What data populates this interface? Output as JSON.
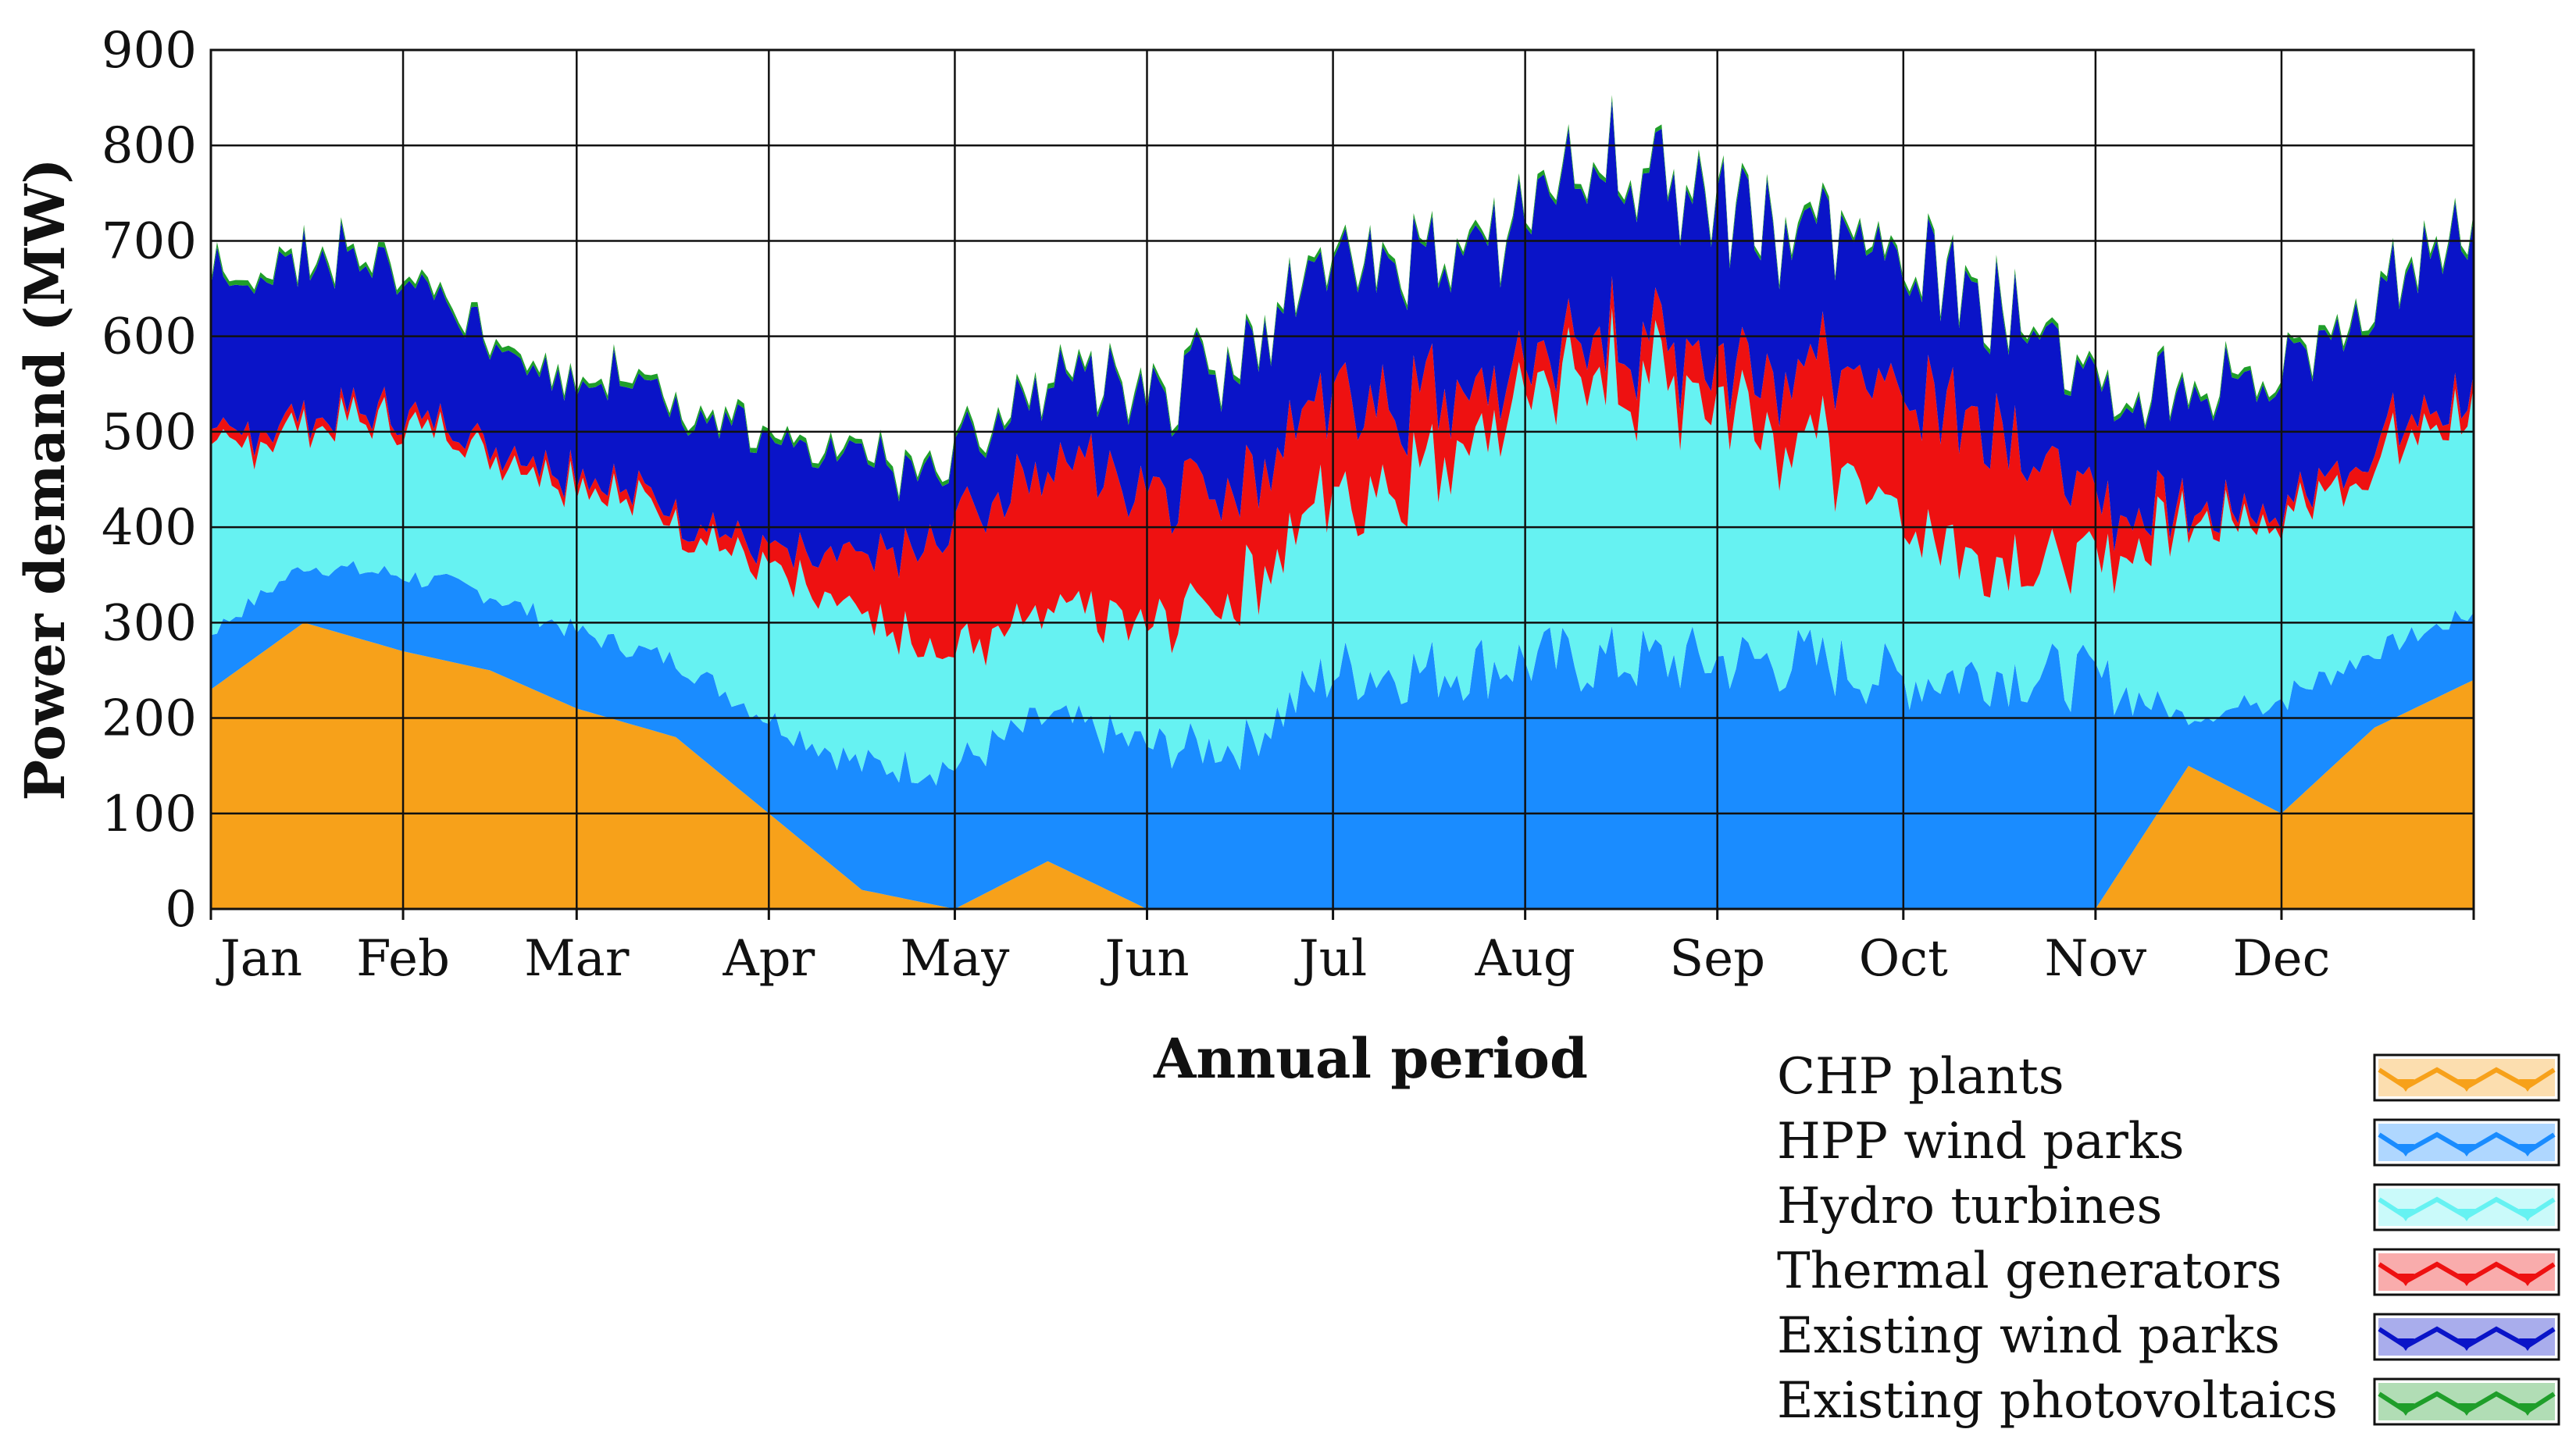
{
  "chart_data": {
    "type": "area",
    "title": "",
    "xlabel": "Annual period",
    "ylabel": "Power demand (MW)",
    "ylim": [
      0,
      900
    ],
    "y_ticks": [
      0,
      100,
      200,
      300,
      400,
      500,
      600,
      700,
      800,
      900
    ],
    "x_tick_labels": [
      "Jan",
      "Feb",
      "Mar",
      "Apr",
      "May",
      "Jun",
      "Jul",
      "Aug",
      "Sep",
      "Oct",
      "Nov",
      "Dec"
    ],
    "grid": true,
    "legend_position": "bottom-right",
    "x_days": [
      0,
      15,
      31,
      45,
      59,
      75,
      90,
      105,
      120,
      135,
      151,
      166,
      181,
      196,
      212,
      227,
      243,
      258,
      273,
      288,
      304,
      319,
      334,
      349,
      365
    ],
    "series": [
      {
        "name": "CHP plants",
        "color": "#F7A11A",
        "values": [
          230,
          300,
          270,
          250,
          210,
          180,
          100,
          20,
          0,
          50,
          0,
          0,
          0,
          0,
          0,
          0,
          0,
          0,
          0,
          0,
          0,
          150,
          100,
          190,
          240
        ]
      },
      {
        "name": "HPP wind parks",
        "color": "#1A8CFF",
        "values": [
          60,
          60,
          80,
          80,
          80,
          80,
          100,
          130,
          150,
          150,
          170,
          170,
          250,
          250,
          260,
          260,
          260,
          260,
          240,
          250,
          240,
          50,
          120,
          80,
          70
        ]
      },
      {
        "name": "Hydro turbines",
        "color": "#66F2F2",
        "values": [
          180,
          150,
          160,
          150,
          160,
          150,
          160,
          150,
          120,
          110,
          130,
          170,
          180,
          210,
          280,
          300,
          280,
          230,
          170,
          120,
          120,
          210,
          190,
          200,
          220
        ]
      },
      {
        "name": "Thermal generators",
        "color": "#EE1111",
        "values": [
          15,
          10,
          10,
          10,
          10,
          10,
          20,
          60,
          140,
          150,
          140,
          110,
          110,
          80,
          30,
          40,
          40,
          80,
          140,
          150,
          60,
          10,
          10,
          20,
          15
        ]
      },
      {
        "name": "Existing wind parks",
        "color": "#0A14C8",
        "values": [
          170,
          160,
          140,
          110,
          100,
          120,
          120,
          100,
          70,
          90,
          100,
          140,
          150,
          140,
          170,
          180,
          170,
          150,
          140,
          130,
          120,
          120,
          150,
          160,
          170
        ]
      },
      {
        "name": "Existing photovoltaics",
        "color": "#1F9E2A",
        "values": [
          5,
          5,
          5,
          5,
          5,
          5,
          5,
          5,
          5,
          5,
          5,
          5,
          5,
          5,
          5,
          5,
          5,
          5,
          5,
          5,
          5,
          5,
          5,
          5,
          5
        ]
      }
    ]
  }
}
